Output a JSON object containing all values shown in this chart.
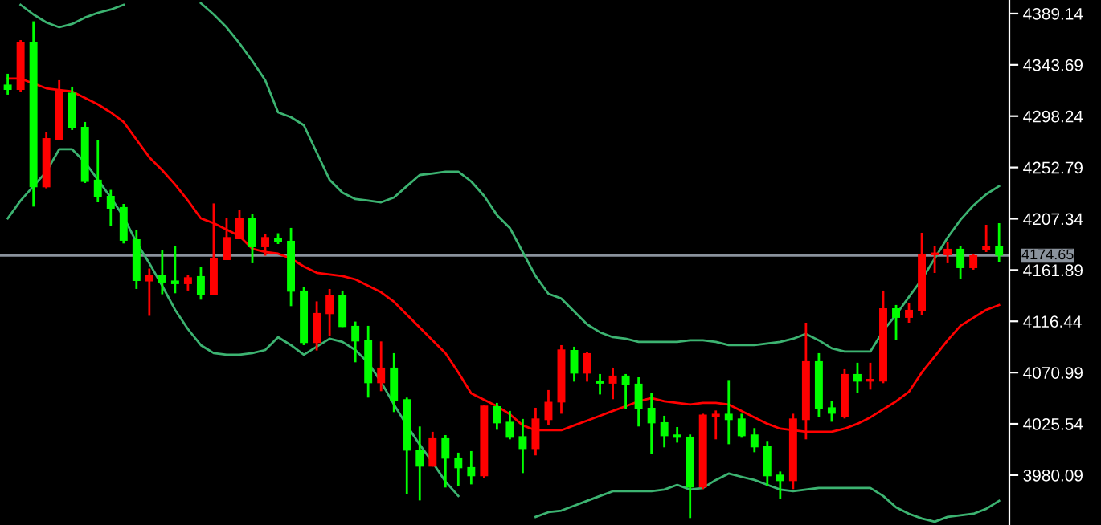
{
  "chart_data": {
    "type": "candlestick",
    "categories": [
      null,
      null,
      null,
      null,
      null,
      null,
      null,
      null,
      null,
      null,
      null,
      null,
      null,
      null,
      null,
      null,
      null,
      null,
      null,
      null,
      null,
      null,
      null,
      null,
      null,
      null,
      null,
      null,
      null,
      null,
      null,
      null,
      null,
      null,
      null,
      null,
      null,
      null,
      null,
      null,
      null,
      null,
      null,
      null,
      null,
      null,
      null,
      null,
      null,
      null,
      null,
      null,
      null,
      null,
      null,
      null,
      null,
      null,
      null,
      null,
      null,
      null,
      null,
      null,
      null,
      null,
      null,
      null,
      null,
      null,
      null,
      null,
      null,
      null,
      null,
      null,
      null,
      null
    ],
    "ohlc": [
      [
        4326.2,
        4335.8,
        4317.3,
        4321.5
      ],
      [
        4321.5,
        4365.6,
        4319.7,
        4364.2
      ],
      [
        4364.2,
        4382.3,
        4218.1,
        4235.2
      ],
      [
        4235.2,
        4284.5,
        4234.3,
        4278.8
      ],
      [
        4277.0,
        4330.1,
        4277.0,
        4321.5
      ],
      [
        4319.1,
        4324.4,
        4286.0,
        4287.4
      ],
      [
        4288.8,
        4293.1,
        4239.0,
        4240.0
      ],
      [
        4241.9,
        4277.0,
        4221.9,
        4226.2
      ],
      [
        4227.6,
        4232.9,
        4201.0,
        4216.2
      ],
      [
        4217.7,
        4220.5,
        4185.4,
        4187.8
      ],
      [
        4189.2,
        4197.3,
        4145.1,
        4152.2
      ],
      [
        4151.8,
        4163.2,
        4121.3,
        4157.5
      ],
      [
        4157.9,
        4179.2,
        4140.4,
        4150.8
      ],
      [
        4152.6,
        4183.1,
        4141.3,
        4149.4
      ],
      [
        4149.4,
        4157.9,
        4143.7,
        4155.5
      ],
      [
        4156.5,
        4165.0,
        4135.6,
        4139.4
      ],
      [
        4139.4,
        4220.9,
        4139.4,
        4172.1
      ],
      [
        4170.7,
        4207.7,
        4170.7,
        4191.1
      ],
      [
        4189.2,
        4214.8,
        4189.2,
        4208.1
      ],
      [
        4208.1,
        4211.5,
        4167.9,
        4182.1
      ],
      [
        4182.1,
        4193.9,
        4174.6,
        4191.1
      ],
      [
        4190.6,
        4194.5,
        4184.9,
        4186.8
      ],
      [
        4187.8,
        4199.2,
        4129.9,
        4142.7
      ],
      [
        4143.7,
        4146.5,
        4095.3,
        4097.2
      ],
      [
        4097.2,
        4134.1,
        4090.6,
        4123.8
      ],
      [
        4122.8,
        4145.1,
        4103.8,
        4139.4
      ],
      [
        4139.4,
        4143.7,
        4111.4,
        4111.4
      ],
      [
        4112.4,
        4116.2,
        4080.1,
        4098.6
      ],
      [
        4099.6,
        4112.4,
        4048.8,
        4061.6
      ],
      [
        4061.6,
        4098.6,
        4054.5,
        4075.4
      ],
      [
        4075.4,
        4088.2,
        4036.0,
        4045.9
      ],
      [
        4047.4,
        4048.8,
        3963.4,
        4001.8
      ],
      [
        4002.8,
        4023.2,
        3957.7,
        3987.6
      ],
      [
        3987.6,
        4018.5,
        3987.6,
        4012.8
      ],
      [
        4012.8,
        4015.6,
        3969.1,
        3994.7
      ],
      [
        3995.7,
        4000.0,
        3970.5,
        3986.2
      ],
      [
        3987.2,
        4001.4,
        3971.9,
        3979.1
      ],
      [
        3979.1,
        4041.7,
        3977.6,
        4041.7
      ],
      [
        4041.2,
        4044.1,
        4020.3,
        4026.0
      ],
      [
        4027.4,
        4037.0,
        4011.8,
        4013.2
      ],
      [
        4014.6,
        4029.9,
        3981.9,
        4003.2
      ],
      [
        4003.2,
        4039.8,
        3997.6,
        4030.3
      ],
      [
        4028.9,
        4055.5,
        4024.6,
        4045.1
      ],
      [
        4044.5,
        4095.3,
        4034.5,
        4091.5
      ],
      [
        4091.0,
        4093.9,
        4063.0,
        4070.1
      ],
      [
        4070.1,
        4089.6,
        4063.0,
        4088.2
      ],
      [
        4064.0,
        4069.7,
        4051.6,
        4061.2
      ],
      [
        4061.2,
        4075.4,
        4047.4,
        4068.3
      ],
      [
        4068.3,
        4069.7,
        4038.8,
        4060.2
      ],
      [
        4061.2,
        4066.8,
        4023.2,
        4038.8
      ],
      [
        4039.8,
        4052.6,
        3999.0,
        4026.0
      ],
      [
        4027.0,
        4032.7,
        4004.7,
        4014.6
      ],
      [
        4016.1,
        4022.7,
        4008.9,
        4013.2
      ],
      [
        4014.2,
        4016.1,
        3942.1,
        3969.1
      ],
      [
        3969.1,
        4034.5,
        3967.7,
        4033.7
      ],
      [
        4031.7,
        4037.4,
        4011.8,
        4034.5
      ],
      [
        4034.5,
        4064.4,
        4007.5,
        4028.9
      ],
      [
        4030.3,
        4034.5,
        4013.2,
        4014.6
      ],
      [
        4016.1,
        4021.8,
        4000.4,
        4004.7
      ],
      [
        4006.1,
        4010.4,
        3970.5,
        3979.1
      ],
      [
        3980.5,
        3983.3,
        3959.1,
        3974.8
      ],
      [
        3974.8,
        4034.5,
        3967.7,
        4030.3
      ],
      [
        4028.9,
        4115.2,
        4011.8,
        4081.1
      ],
      [
        4081.1,
        4088.2,
        4031.7,
        4038.8
      ],
      [
        4040.2,
        4045.9,
        4027.4,
        4034.5
      ],
      [
        4031.7,
        4074.0,
        4030.3,
        4069.7
      ],
      [
        4069.7,
        4079.7,
        4053.0,
        4063.0
      ],
      [
        4063.0,
        4079.7,
        4055.9,
        4065.4
      ],
      [
        4063.0,
        4143.7,
        4061.6,
        4128.0
      ],
      [
        4128.0,
        4130.9,
        4099.6,
        4119.5
      ],
      [
        4119.5,
        4132.3,
        4115.2,
        4126.6
      ],
      [
        4125.2,
        4194.9,
        4122.3,
        4176.4
      ],
      [
        4175.0,
        4183.1,
        4159.3,
        4177.4
      ],
      [
        4175.0,
        4186.4,
        4167.9,
        4180.7
      ],
      [
        4180.7,
        4183.5,
        4153.6,
        4163.6
      ],
      [
        4163.6,
        4176.4,
        4162.2,
        4175.0
      ],
      [
        4179.2,
        4202.0,
        4177.8,
        4183.5
      ],
      [
        4183.5,
        4203.4,
        4168.9,
        4174.65
      ]
    ],
    "colors": [
      "#00ff00",
      "#ff0000",
      "#00ff00",
      "#ff0000",
      "#ff0000",
      "#00ff00",
      "#00ff00",
      "#00ff00",
      "#00ff00",
      "#00ff00",
      "#00ff00",
      "#ff0000",
      "#00ff00",
      "#00ff00",
      "#ff0000",
      "#00ff00",
      "#ff0000",
      "#ff0000",
      "#ff0000",
      "#00ff00",
      "#ff0000",
      "#00ff00",
      "#00ff00",
      "#00ff00",
      "#ff0000",
      "#ff0000",
      "#00ff00",
      "#00ff00",
      "#00ff00",
      "#ff0000",
      "#00ff00",
      "#00ff00",
      "#00ff00",
      "#ff0000",
      "#00ff00",
      "#00ff00",
      "#00ff00",
      "#ff0000",
      "#00ff00",
      "#00ff00",
      "#00ff00",
      "#ff0000",
      "#ff0000",
      "#ff0000",
      "#00ff00",
      "#ff0000",
      "#00ff00",
      "#ff0000",
      "#00ff00",
      "#00ff00",
      "#00ff00",
      "#00ff00",
      "#00ff00",
      "#00ff00",
      "#ff0000",
      "#ff0000",
      "#00ff00",
      "#00ff00",
      "#00ff00",
      "#00ff00",
      "#00ff00",
      "#ff0000",
      "#ff0000",
      "#00ff00",
      "#00ff00",
      "#ff0000",
      "#00ff00",
      "#ff0000",
      "#ff0000",
      "#00ff00",
      "#ff0000",
      "#ff0000",
      "#ff0000",
      "#ff0000",
      "#00ff00",
      "#ff0000",
      "#ff0000",
      "#00ff00"
    ],
    "series": [
      {
        "type": "line",
        "color": "#3cb371",
        "values": [
          null,
          4396.9,
          4388.4,
          4381.3,
          4377.0,
          4379.9,
          4385.6,
          4389.8,
          4392.7,
          4396.9,
          null,
          null,
          null,
          null,
          null,
          4398.4,
          4388.4,
          4377.0,
          4362.8,
          4347.1,
          4330.1,
          4301.6,
          4297.3,
          4290.2,
          4266.0,
          4241.9,
          4230.5,
          4224.8,
          4223.4,
          4221.9,
          4226.2,
          4236.2,
          4246.1,
          4247.5,
          4249.0,
          4249.0,
          4240.4,
          4227.6,
          4210.6,
          4199.2,
          4177.8,
          4156.5,
          4140.8,
          4136.6,
          4125.2,
          4113.8,
          4106.7,
          4102.4,
          4101.0,
          4098.2,
          4098.2,
          4098.2,
          4098.2,
          4099.6,
          4099.6,
          4098.2,
          4095.3,
          4095.3,
          4095.3,
          4096.7,
          4098.2,
          4101.0,
          4105.3,
          4099.6,
          4092.5,
          4089.6,
          4089.6,
          4089.6,
          4108.1,
          4122.3,
          4138.0,
          4153.6,
          4172.1,
          4190.6,
          4206.3,
          4219.1,
          4229.0,
          4236.2
        ]
      },
      {
        "type": "line",
        "color": "#ff0000",
        "values": [
          4331.5,
          4331.5,
          4327.2,
          4322.9,
          4321.5,
          4320.1,
          4314.4,
          4308.7,
          4301.6,
          4293.1,
          4277.4,
          4261.8,
          4250.4,
          4237.6,
          4223.4,
          4207.7,
          4203.4,
          4197.7,
          4192.1,
          4180.7,
          4177.8,
          4176.4,
          4172.1,
          4165.0,
          4159.4,
          4157.9,
          4156.5,
          4153.6,
          4147.9,
          4142.2,
          4133.7,
          4122.3,
          4110.9,
          4099.6,
          4088.2,
          4071.1,
          4052.6,
          4046.9,
          4041.2,
          4034.1,
          4024.2,
          4019.9,
          4019.9,
          4019.9,
          4024.2,
          4028.4,
          4032.7,
          4037.0,
          4041.2,
          4045.5,
          4048.4,
          4045.5,
          4044.1,
          4042.7,
          4044.1,
          4044.1,
          4042.7,
          4037.0,
          4031.3,
          4025.6,
          4021.3,
          4019.9,
          4018.5,
          4018.5,
          4018.5,
          4021.3,
          4025.6,
          4031.3,
          4038.4,
          4045.5,
          4054.0,
          4071.1,
          4085.3,
          4099.6,
          4112.4,
          4119.5,
          4126.6,
          4130.9
        ]
      },
      {
        "type": "line",
        "color": "#3cb371",
        "values": [
          4207.7,
          4223.4,
          4236.2,
          4249.0,
          4268.9,
          4268.9,
          4257.5,
          4241.9,
          4226.2,
          4209.1,
          4186.4,
          4167.9,
          4147.9,
          4126.6,
          4109.5,
          4095.3,
          4088.2,
          4086.8,
          4086.8,
          4088.2,
          4091.0,
          4102.4,
          4095.3,
          4086.8,
          4093.9,
          4101.0,
          4098.2,
          4091.0,
          4079.7,
          4062.6,
          4042.7,
          4024.2,
          4007.1,
          3991.4,
          3974.4,
          3961.6,
          null,
          null,
          null,
          null,
          null,
          3943.1,
          3947.3,
          3948.7,
          3953.0,
          3957.3,
          3961.6,
          3965.8,
          3965.8,
          3965.8,
          3965.8,
          3967.3,
          3971.5,
          3967.3,
          3968.7,
          3975.8,
          3981.5,
          3978.6,
          3975.8,
          3971.5,
          3967.3,
          3965.8,
          3967.3,
          3968.7,
          3968.7,
          3968.7,
          3968.7,
          3968.7,
          3961.6,
          3951.6,
          3945.9,
          3941.7,
          3938.8,
          3943.1,
          3944.5,
          3945.9,
          3950.2,
          3957.3
        ]
      }
    ],
    "ylim": [
      3935.9,
      4401.2
    ],
    "yticks": [
      3980.09,
      4025.54,
      4070.99,
      4116.44,
      4161.89,
      4207.34,
      4252.79,
      4298.24,
      4343.69,
      4389.14
    ],
    "ref_lines": [
      {
        "axis": "y",
        "value": 4174.65,
        "label": "4174.65",
        "color": "#8a929c"
      }
    ],
    "tick_labels": "y",
    "grid": false,
    "legend": false
  }
}
